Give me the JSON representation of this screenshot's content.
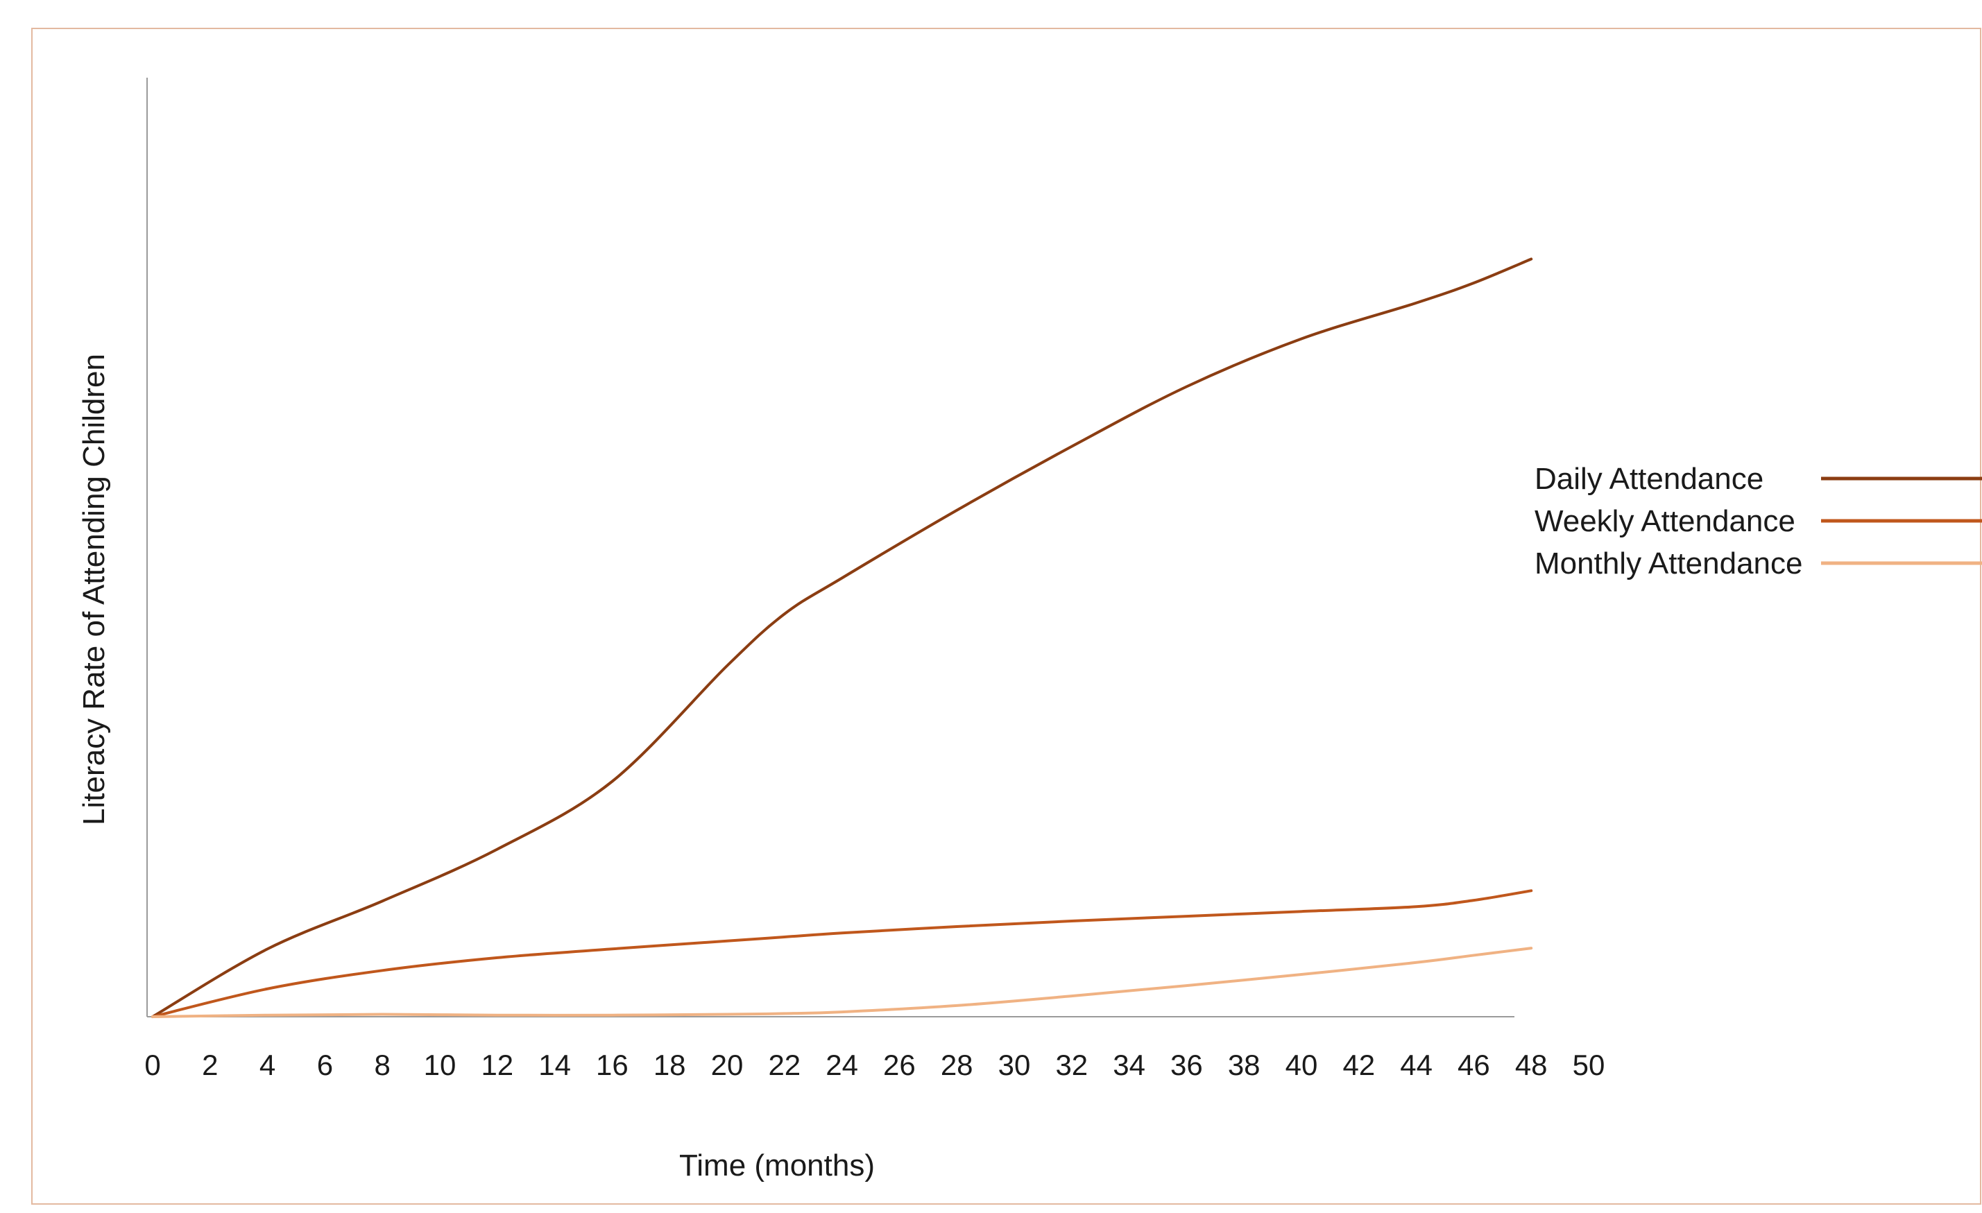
{
  "chart_data": {
    "type": "line",
    "title": "",
    "xlabel": "Time (months)",
    "ylabel": "Literacy Rate of Attending Children",
    "x_ticks": [
      "0",
      "2",
      "4",
      "6",
      "8",
      "10",
      "12",
      "14",
      "16",
      "18",
      "20",
      "22",
      "24",
      "26",
      "28",
      "30",
      "32",
      "34",
      "36",
      "38",
      "40",
      "42",
      "44",
      "46",
      "48",
      "50"
    ],
    "xlim": [
      0,
      50
    ],
    "ylim": [
      0,
      100
    ],
    "y_ticks_shown": false,
    "grid": false,
    "legend_position": "right",
    "x": [
      0,
      4,
      8,
      12,
      16,
      20,
      22,
      24,
      28,
      32,
      36,
      40,
      44,
      46,
      48
    ],
    "series": [
      {
        "name": "Daily Attendance",
        "color": "#8b3d12",
        "values": [
          0,
          8.5,
          14.5,
          21,
          29.5,
          44,
          50.5,
          55,
          63.5,
          71.5,
          79,
          85,
          89.5,
          92,
          95
        ]
      },
      {
        "name": "Weekly Attendance",
        "color": "#c0571c",
        "values": [
          0,
          3.5,
          5.8,
          7.4,
          8.5,
          9.5,
          10,
          10.5,
          11.3,
          12,
          12.6,
          13.2,
          13.8,
          14.6,
          15.8
        ]
      },
      {
        "name": "Monthly Attendance",
        "color": "#f0b283",
        "values": [
          0,
          0.2,
          0.3,
          0.2,
          0.2,
          0.3,
          0.4,
          0.6,
          1.4,
          2.6,
          3.9,
          5.3,
          6.8,
          7.7,
          8.6
        ]
      }
    ]
  }
}
